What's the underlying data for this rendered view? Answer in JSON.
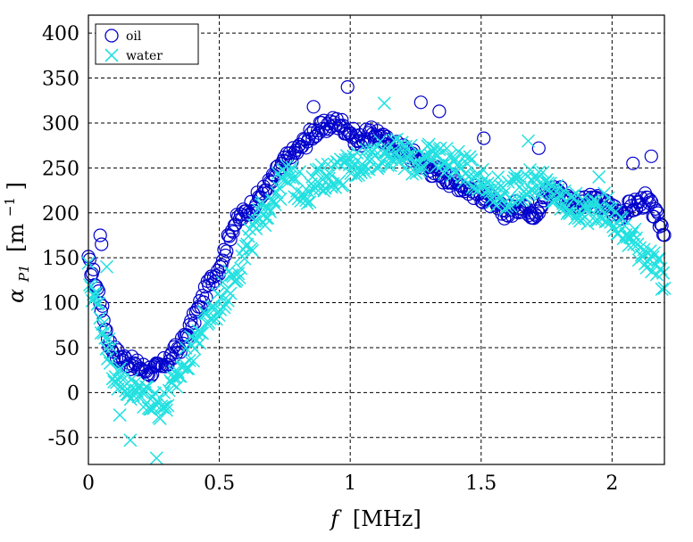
{
  "chart_data": {
    "type": "scatter",
    "xlabel": {
      "symbol": "f",
      "unit": "[MHz]"
    },
    "ylabel": {
      "symbol": "α",
      "subscript": "P1",
      "unit": "[m",
      "exp": "−1",
      "close": "]"
    },
    "xlim": [
      0,
      2.2
    ],
    "ylim": [
      -80,
      420
    ],
    "xticks": [
      0,
      0.5,
      1,
      1.5,
      2
    ],
    "xtick_labels": [
      "0",
      "0.5",
      "1",
      "1.5",
      "2"
    ],
    "yticks": [
      -50,
      0,
      50,
      100,
      150,
      200,
      250,
      300,
      350,
      400
    ],
    "ytick_labels": [
      "-50",
      "0",
      "50",
      "100",
      "150",
      "200",
      "250",
      "300",
      "350",
      "400"
    ],
    "grid": true,
    "legend_position": "top-left",
    "series": [
      {
        "name": "oil",
        "marker": "circle",
        "color": "#0000cc",
        "x": [
          0.0,
          0.02,
          0.04,
          0.06,
          0.08,
          0.1,
          0.12,
          0.15,
          0.18,
          0.2,
          0.22,
          0.25,
          0.28,
          0.3,
          0.33,
          0.36,
          0.4,
          0.43,
          0.46,
          0.5,
          0.53,
          0.55,
          0.58,
          0.6,
          0.63,
          0.66,
          0.7,
          0.73,
          0.76,
          0.8,
          0.83,
          0.86,
          0.9,
          0.93,
          0.96,
          1.0,
          1.03,
          1.06,
          1.1,
          1.13,
          1.16,
          1.2,
          1.23,
          1.26,
          1.3,
          1.33,
          1.36,
          1.4,
          1.43,
          1.46,
          1.5,
          1.53,
          1.56,
          1.6,
          1.63,
          1.66,
          1.7,
          1.73,
          1.76,
          1.8,
          1.83,
          1.86,
          1.9,
          1.93,
          1.96,
          2.0,
          2.03,
          2.06,
          2.1,
          2.13,
          2.16,
          2.2
        ],
        "y": [
          145,
          130,
          110,
          80,
          55,
          45,
          40,
          35,
          30,
          28,
          25,
          25,
          28,
          35,
          45,
          55,
          80,
          100,
          120,
          140,
          165,
          185,
          195,
          200,
          210,
          220,
          235,
          250,
          260,
          270,
          280,
          290,
          295,
          300,
          300,
          290,
          280,
          285,
          290,
          280,
          275,
          270,
          265,
          260,
          250,
          245,
          240,
          235,
          230,
          225,
          220,
          215,
          205,
          200,
          205,
          210,
          200,
          210,
          225,
          225,
          215,
          210,
          210,
          215,
          210,
          205,
          200,
          205,
          210,
          215,
          200,
          180
        ]
      },
      {
        "name": "water",
        "marker": "x",
        "color": "#22e0e0",
        "x": [
          0.0,
          0.02,
          0.04,
          0.06,
          0.08,
          0.1,
          0.12,
          0.15,
          0.18,
          0.2,
          0.22,
          0.25,
          0.28,
          0.3,
          0.33,
          0.36,
          0.4,
          0.43,
          0.46,
          0.5,
          0.53,
          0.56,
          0.6,
          0.63,
          0.66,
          0.7,
          0.73,
          0.76,
          0.8,
          0.83,
          0.86,
          0.9,
          0.93,
          0.96,
          1.0,
          1.03,
          1.06,
          1.1,
          1.13,
          1.16,
          1.2,
          1.23,
          1.26,
          1.3,
          1.33,
          1.36,
          1.4,
          1.43,
          1.46,
          1.5,
          1.53,
          1.56,
          1.6,
          1.63,
          1.66,
          1.7,
          1.73,
          1.76,
          1.8,
          1.83,
          1.86,
          1.9,
          1.93,
          1.96,
          2.0,
          2.03,
          2.06,
          2.1,
          2.13,
          2.16,
          2.2
        ],
        "y": [
          130,
          110,
          90,
          70,
          45,
          25,
          15,
          5,
          0,
          -5,
          0,
          -10,
          -15,
          -10,
          10,
          30,
          50,
          70,
          85,
          100,
          115,
          135,
          155,
          175,
          195,
          215,
          230,
          240,
          230,
          225,
          230,
          240,
          245,
          245,
          250,
          255,
          260,
          265,
          270,
          265,
          265,
          260,
          255,
          260,
          265,
          260,
          255,
          250,
          245,
          240,
          230,
          225,
          220,
          225,
          230,
          240,
          230,
          225,
          215,
          210,
          205,
          200,
          205,
          210,
          195,
          185,
          175,
          165,
          155,
          140,
          125
        ]
      }
    ],
    "outliers": [
      {
        "series": "oil",
        "x": 0.045,
        "y": 175
      },
      {
        "series": "oil",
        "x": 0.05,
        "y": 165
      },
      {
        "series": "oil",
        "x": 0.86,
        "y": 318
      },
      {
        "series": "oil",
        "x": 0.99,
        "y": 340
      },
      {
        "series": "oil",
        "x": 1.27,
        "y": 323
      },
      {
        "series": "oil",
        "x": 1.34,
        "y": 313
      },
      {
        "series": "oil",
        "x": 1.51,
        "y": 283
      },
      {
        "series": "oil",
        "x": 1.72,
        "y": 272
      },
      {
        "series": "oil",
        "x": 2.08,
        "y": 255
      },
      {
        "series": "oil",
        "x": 2.15,
        "y": 263
      },
      {
        "series": "water",
        "x": 0.07,
        "y": 140
      },
      {
        "series": "water",
        "x": 0.16,
        "y": -53
      },
      {
        "series": "water",
        "x": 0.26,
        "y": -73
      },
      {
        "series": "water",
        "x": 0.12,
        "y": -25
      },
      {
        "series": "water",
        "x": 1.13,
        "y": 322
      },
      {
        "series": "water",
        "x": 1.68,
        "y": 280
      },
      {
        "series": "water",
        "x": 1.95,
        "y": 240
      }
    ]
  }
}
